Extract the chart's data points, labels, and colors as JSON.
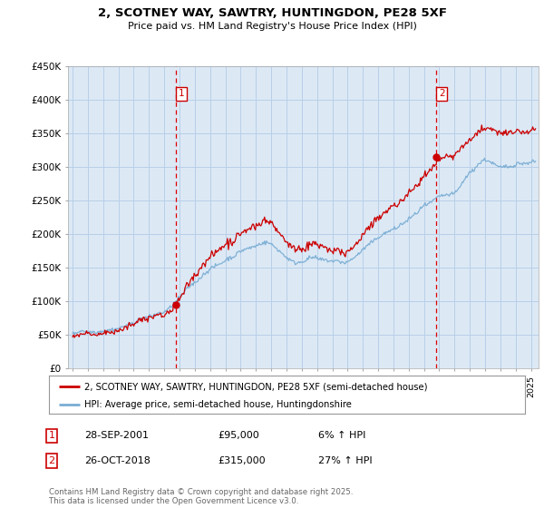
{
  "title_line1": "2, SCOTNEY WAY, SAWTRY, HUNTINGDON, PE28 5XF",
  "title_line2": "Price paid vs. HM Land Registry's House Price Index (HPI)",
  "ylim": [
    0,
    450000
  ],
  "yticks": [
    0,
    50000,
    100000,
    150000,
    200000,
    250000,
    300000,
    350000,
    400000,
    450000
  ],
  "ytick_labels": [
    "£0",
    "£50K",
    "£100K",
    "£150K",
    "£200K",
    "£250K",
    "£300K",
    "£350K",
    "£400K",
    "£450K"
  ],
  "background_color": "#ffffff",
  "chart_bg_color": "#dce9f5",
  "grid_color": "#b8cfe8",
  "property_color": "#cc0000",
  "hpi_color": "#7aadd4",
  "purchase1_date_x": 2001.75,
  "purchase1_price": 95000,
  "purchase2_date_x": 2018.82,
  "purchase2_price": 315000,
  "legend_property": "2, SCOTNEY WAY, SAWTRY, HUNTINGDON, PE28 5XF (semi-detached house)",
  "legend_hpi": "HPI: Average price, semi-detached house, Huntingdonshire",
  "footnote": "Contains HM Land Registry data © Crown copyright and database right 2025.\nThis data is licensed under the Open Government Licence v3.0.",
  "table_rows": [
    [
      "1",
      "28-SEP-2001",
      "£95,000",
      "6% ↑ HPI"
    ],
    [
      "2",
      "26-OCT-2018",
      "£315,000",
      "27% ↑ HPI"
    ]
  ],
  "purchase_dashed_color": "#dd0000",
  "xlim_start": 1994.7,
  "xlim_end": 2025.5
}
